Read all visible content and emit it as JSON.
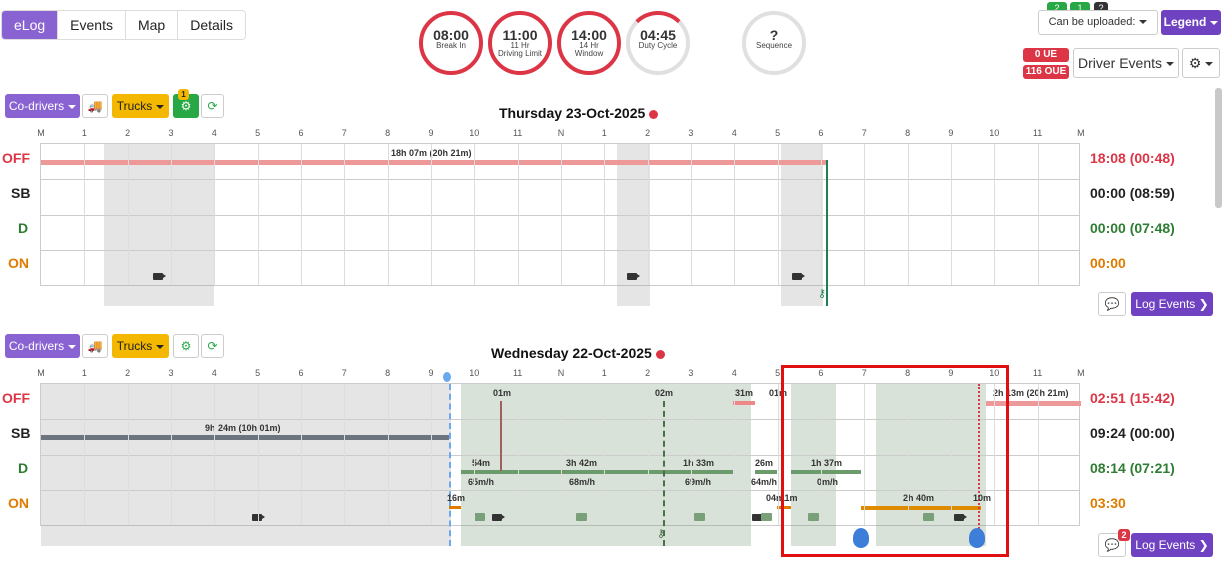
{
  "tabs": [
    "eLog",
    "Events",
    "Map",
    "Details"
  ],
  "clocks": [
    {
      "time": "08:00",
      "label": "Break In",
      "label2": "",
      "red": true
    },
    {
      "time": "11:00",
      "label": "11 Hr",
      "label2": "Driving Limit",
      "red": true
    },
    {
      "time": "14:00",
      "label": "14 Hr",
      "label2": "Window",
      "red": true
    },
    {
      "time": "04:45",
      "label": "Duty Cycle",
      "label2": "",
      "red": false
    },
    {
      "time": "?",
      "label": "Sequence",
      "label2": "",
      "red": false
    }
  ],
  "top_right": {
    "badge1": "2",
    "badge2": "1",
    "badge3": "?",
    "upload_label": "Can be uploaded:",
    "legend_label": "Legend",
    "ue": "0 UE",
    "oue": "116 OUE",
    "driver_events_label": "Driver Events"
  },
  "hours": [
    "M",
    "1",
    "2",
    "3",
    "4",
    "5",
    "6",
    "7",
    "8",
    "9",
    "10",
    "11",
    "N",
    "1",
    "2",
    "3",
    "4",
    "5",
    "6",
    "7",
    "8",
    "9",
    "10",
    "11",
    "M"
  ],
  "status_labels": {
    "off": "OFF",
    "sb": "SB",
    "d": "D",
    "on": "ON"
  },
  "colors": {
    "off": "#dc3545",
    "sb": "#333333",
    "d": "#2e7d32",
    "on": "#e07b00"
  },
  "day1": {
    "codrivers_label": "Co-drivers",
    "trucks_label": "Trucks",
    "eng_badge": "1",
    "title": "Thursday 23-Oct-2025",
    "off_duration": "18h 07m (20h 21m)",
    "totals": {
      "off": "18:08 (00:48)",
      "sb": "00:00 (08:59)",
      "d": "00:00 (07:48)",
      "on": "00:00"
    },
    "log_events_label": "Log Events"
  },
  "day2": {
    "codrivers_label": "Co-drivers",
    "trucks_label": "Trucks",
    "title": "Wednesday 22-Oct-2025",
    "totals": {
      "off": "02:51 (15:42)",
      "sb": "09:24 (00:00)",
      "d": "08:14 (07:21)",
      "on": "03:30"
    },
    "labels": {
      "sb_dur": "9h 24m (10h 01m)",
      "off1": "01m",
      "off2": "02m",
      "off3": "31m",
      "off4": "01m",
      "off_end": "2h 13m (20h 21m)",
      "d1": "54m",
      "d1s": "65m/h",
      "d2": "3h 42m",
      "d2s": "68m/h",
      "d3": "1h 33m",
      "d3s": "69m/h",
      "d4": "26m",
      "d4s": "64m/h",
      "d5": "1h 37m",
      "d5s": "0m/h",
      "on1": "16m",
      "on2": "04m",
      "on2b": "11m",
      "on3": "2h 40m",
      "on4": "10m"
    },
    "comments_badge": "2",
    "log_events_label": "Log Events"
  }
}
